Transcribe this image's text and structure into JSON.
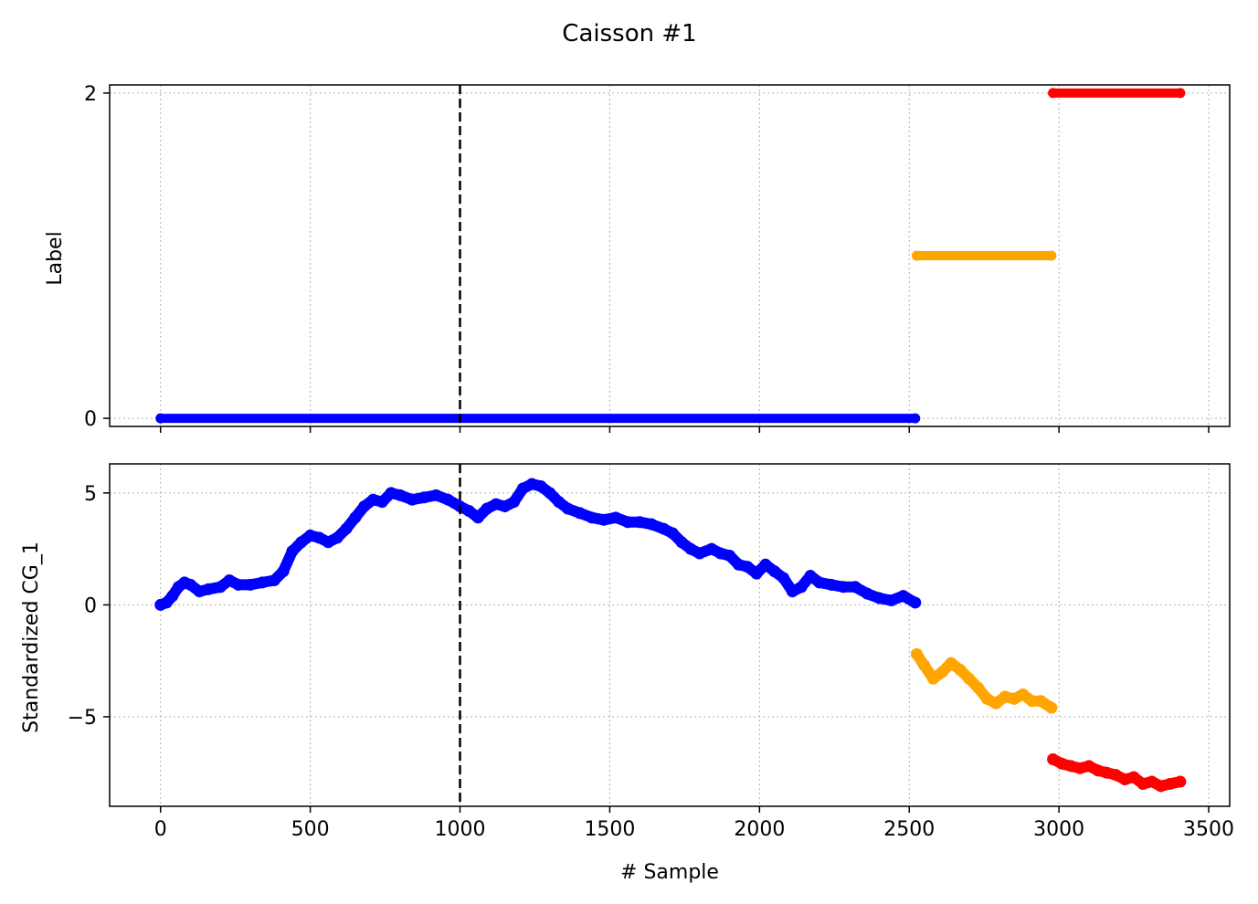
{
  "figure": {
    "title": "Caisson #1",
    "xlabel": "# Sample"
  },
  "chart_data": [
    {
      "type": "scatter",
      "ylabel": "Label",
      "xlim": [
        -170,
        3570
      ],
      "ylim": [
        -0.05,
        2.05
      ],
      "xticks": [
        0,
        500,
        1000,
        1500,
        2000,
        2500,
        3000,
        3500
      ],
      "yticks": [
        0,
        2
      ],
      "ytick_labels": [
        "0",
        "2"
      ],
      "grid": true,
      "vline_x": 1000,
      "series": [
        {
          "color": "#0000ff",
          "x_range": [
            0,
            2520
          ],
          "values": [
            [
              0,
              0
            ],
            [
              2520,
              0
            ]
          ]
        },
        {
          "color": "#ffa500",
          "x_range": [
            2525,
            2975
          ],
          "values": [
            [
              2525,
              1
            ],
            [
              2975,
              1
            ]
          ]
        },
        {
          "color": "#ff0000",
          "x_range": [
            2980,
            3405
          ],
          "values": [
            [
              2980,
              2
            ],
            [
              3405,
              2
            ]
          ]
        }
      ]
    },
    {
      "type": "scatter",
      "ylabel": "Standardized CG_1",
      "xlim": [
        -170,
        3570
      ],
      "ylim": [
        -9.0,
        6.3
      ],
      "xticks": [
        0,
        500,
        1000,
        1500,
        2000,
        2500,
        3000,
        3500
      ],
      "xtick_labels": [
        "0",
        "500",
        "1000",
        "1500",
        "2000",
        "2500",
        "3000",
        "3500"
      ],
      "yticks": [
        5,
        0,
        -5
      ],
      "ytick_labels": [
        "5",
        "0",
        "−5"
      ],
      "grid": true,
      "vline_x": 1000,
      "series": [
        {
          "color": "#0000ff",
          "values": [
            [
              0,
              0.0
            ],
            [
              20,
              0.1
            ],
            [
              40,
              0.4
            ],
            [
              60,
              0.8
            ],
            [
              80,
              1.0
            ],
            [
              100,
              0.9
            ],
            [
              130,
              0.6
            ],
            [
              160,
              0.7
            ],
            [
              200,
              0.8
            ],
            [
              230,
              1.1
            ],
            [
              260,
              0.9
            ],
            [
              300,
              0.9
            ],
            [
              340,
              1.0
            ],
            [
              380,
              1.1
            ],
            [
              410,
              1.5
            ],
            [
              440,
              2.4
            ],
            [
              470,
              2.8
            ],
            [
              500,
              3.1
            ],
            [
              530,
              3.0
            ],
            [
              560,
              2.8
            ],
            [
              590,
              3.0
            ],
            [
              620,
              3.4
            ],
            [
              650,
              3.9
            ],
            [
              680,
              4.4
            ],
            [
              710,
              4.7
            ],
            [
              740,
              4.6
            ],
            [
              770,
              5.0
            ],
            [
              800,
              4.9
            ],
            [
              840,
              4.7
            ],
            [
              880,
              4.8
            ],
            [
              920,
              4.9
            ],
            [
              960,
              4.7
            ],
            [
              1000,
              4.4
            ],
            [
              1030,
              4.2
            ],
            [
              1060,
              3.9
            ],
            [
              1090,
              4.3
            ],
            [
              1120,
              4.5
            ],
            [
              1150,
              4.4
            ],
            [
              1180,
              4.6
            ],
            [
              1210,
              5.2
            ],
            [
              1240,
              5.4
            ],
            [
              1270,
              5.3
            ],
            [
              1300,
              5.0
            ],
            [
              1330,
              4.6
            ],
            [
              1360,
              4.3
            ],
            [
              1400,
              4.1
            ],
            [
              1440,
              3.9
            ],
            [
              1480,
              3.8
            ],
            [
              1520,
              3.9
            ],
            [
              1560,
              3.7
            ],
            [
              1600,
              3.7
            ],
            [
              1640,
              3.6
            ],
            [
              1680,
              3.4
            ],
            [
              1710,
              3.2
            ],
            [
              1740,
              2.8
            ],
            [
              1770,
              2.5
            ],
            [
              1800,
              2.3
            ],
            [
              1840,
              2.5
            ],
            [
              1870,
              2.3
            ],
            [
              1900,
              2.2
            ],
            [
              1930,
              1.8
            ],
            [
              1960,
              1.7
            ],
            [
              1990,
              1.4
            ],
            [
              2020,
              1.8
            ],
            [
              2050,
              1.5
            ],
            [
              2080,
              1.2
            ],
            [
              2110,
              0.6
            ],
            [
              2140,
              0.8
            ],
            [
              2170,
              1.3
            ],
            [
              2200,
              1.0
            ],
            [
              2240,
              0.9
            ],
            [
              2280,
              0.8
            ],
            [
              2320,
              0.8
            ],
            [
              2360,
              0.5
            ],
            [
              2400,
              0.3
            ],
            [
              2440,
              0.2
            ],
            [
              2480,
              0.4
            ],
            [
              2520,
              0.1
            ]
          ]
        },
        {
          "color": "#ffa500",
          "values": [
            [
              2525,
              -2.2
            ],
            [
              2550,
              -2.7
            ],
            [
              2580,
              -3.3
            ],
            [
              2610,
              -3.0
            ],
            [
              2640,
              -2.6
            ],
            [
              2670,
              -2.9
            ],
            [
              2700,
              -3.3
            ],
            [
              2730,
              -3.7
            ],
            [
              2760,
              -4.2
            ],
            [
              2790,
              -4.4
            ],
            [
              2820,
              -4.1
            ],
            [
              2850,
              -4.2
            ],
            [
              2880,
              -4.0
            ],
            [
              2910,
              -4.3
            ],
            [
              2940,
              -4.3
            ],
            [
              2975,
              -4.6
            ]
          ]
        },
        {
          "color": "#ff0000",
          "values": [
            [
              2980,
              -6.9
            ],
            [
              3010,
              -7.1
            ],
            [
              3040,
              -7.2
            ],
            [
              3070,
              -7.3
            ],
            [
              3100,
              -7.2
            ],
            [
              3130,
              -7.4
            ],
            [
              3160,
              -7.5
            ],
            [
              3190,
              -7.6
            ],
            [
              3220,
              -7.8
            ],
            [
              3250,
              -7.7
            ],
            [
              3280,
              -8.0
            ],
            [
              3310,
              -7.9
            ],
            [
              3340,
              -8.1
            ],
            [
              3370,
              -8.0
            ],
            [
              3405,
              -7.9
            ]
          ]
        }
      ]
    }
  ]
}
